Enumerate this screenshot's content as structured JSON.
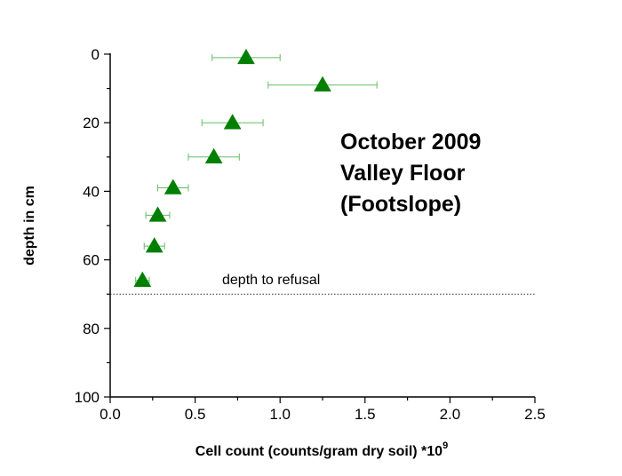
{
  "chart_data": {
    "type": "scatter",
    "xlabel": "Cell count (counts/gram dry soil) *10",
    "xlabel_superscript": "9",
    "ylabel": "depth in cm",
    "xlim": [
      0.0,
      2.5
    ],
    "ylim": [
      0,
      100
    ],
    "y_inverted": true,
    "x_ticks": [
      "0.0",
      "0.5",
      "1.0",
      "1.5",
      "2.0",
      "2.5"
    ],
    "y_ticks": [
      "0",
      "20",
      "40",
      "60",
      "80",
      "100"
    ],
    "grid": false,
    "marker": "triangle",
    "marker_color": "#007f00",
    "errorbar_color": "#66bb66",
    "points": [
      {
        "x": 0.8,
        "y": 1,
        "xerr": 0.2
      },
      {
        "x": 1.25,
        "y": 9,
        "xerr": 0.32
      },
      {
        "x": 0.72,
        "y": 20,
        "xerr": 0.18
      },
      {
        "x": 0.61,
        "y": 30,
        "xerr": 0.15
      },
      {
        "x": 0.37,
        "y": 39,
        "xerr": 0.09
      },
      {
        "x": 0.28,
        "y": 47,
        "xerr": 0.07
      },
      {
        "x": 0.26,
        "y": 56,
        "xerr": 0.06
      },
      {
        "x": 0.19,
        "y": 66,
        "xerr": 0.04
      }
    ],
    "reference_line": {
      "y": 70,
      "label": "depth to refusal",
      "style": "dotted"
    },
    "annotation": [
      "October 2009",
      "Valley Floor",
      "(Footslope)"
    ]
  }
}
